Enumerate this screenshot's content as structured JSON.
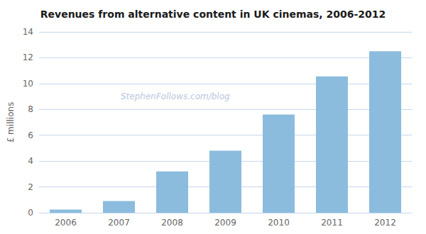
{
  "chart_data": {
    "type": "bar",
    "title": "Revenues from alternative content in UK cinemas, 2006-2012",
    "categories": [
      "2006",
      "2007",
      "2008",
      "2009",
      "2010",
      "2011",
      "2012"
    ],
    "values": [
      0.25,
      0.9,
      3.2,
      4.8,
      7.6,
      10.55,
      12.5
    ],
    "color": "#8BBCDE",
    "ylabel": "£ millions",
    "ylim": [
      0,
      14
    ],
    "yticks": [
      0,
      2,
      4,
      6,
      8,
      10,
      12,
      14
    ],
    "grid": true,
    "annotations": [
      "StephenFollows.com/blog"
    ]
  }
}
